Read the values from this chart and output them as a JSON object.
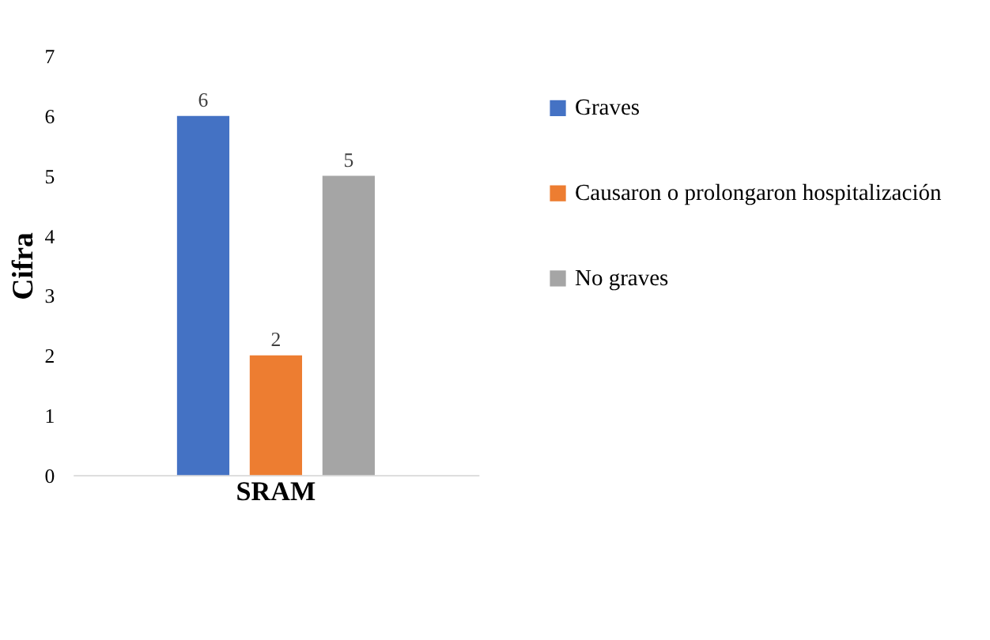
{
  "chart_data": {
    "type": "bar",
    "ylabel": "Cifra",
    "categories": [
      "SRAM"
    ],
    "series": [
      {
        "name": "Graves",
        "color": "#4472c4",
        "values": [
          6
        ]
      },
      {
        "name": "Causaron o prolongaron hospitalización",
        "color": "#ed7d31",
        "values": [
          2
        ]
      },
      {
        "name": "No graves",
        "color": "#a5a5a5",
        "values": [
          5
        ]
      }
    ],
    "ylim": [
      0,
      7
    ],
    "yticks": [
      0,
      1,
      2,
      3,
      4,
      5,
      6,
      7
    ],
    "data_labels": true,
    "legend": "right",
    "grid": false
  }
}
